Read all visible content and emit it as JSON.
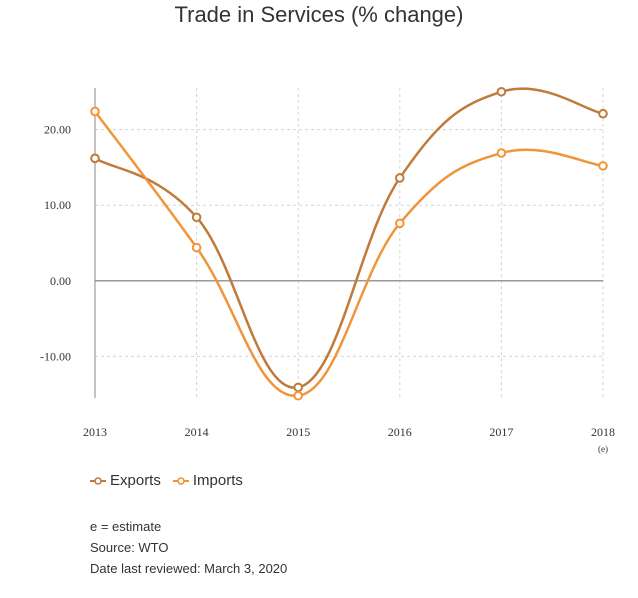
{
  "chart_data": {
    "type": "line",
    "title": "Trade in Services (% change)",
    "categories": [
      "2013",
      "2014",
      "2015",
      "2016",
      "2017",
      "2018"
    ],
    "category_notes": [
      "",
      "",
      "",
      "",
      "",
      "(e)"
    ],
    "series": [
      {
        "name": "Exports",
        "color": "#c07a3a",
        "values": [
          16.2,
          8.4,
          -14.1,
          13.6,
          25.0,
          22.1
        ]
      },
      {
        "name": "Imports",
        "color": "#f0953a",
        "values": [
          22.4,
          4.4,
          -15.2,
          7.6,
          16.9,
          15.2
        ]
      }
    ],
    "y_ticks": [
      "-10.00",
      "0.00",
      "10.00",
      "20.00"
    ],
    "ylim": [
      -15.5,
      25.5
    ],
    "grid": true,
    "legend_position": "bottom-left",
    "xlabel": "",
    "ylabel": ""
  },
  "notes": [
    "e = estimate",
    "Source: WTO",
    "Date last reviewed: March 3, 2020"
  ]
}
